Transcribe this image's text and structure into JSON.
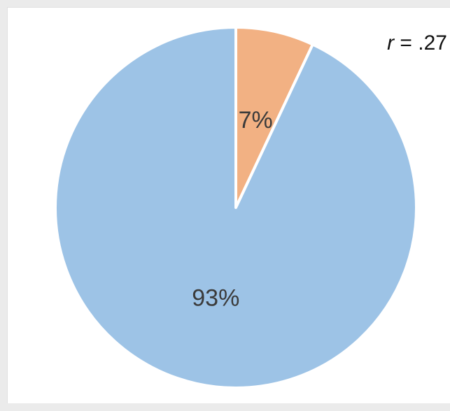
{
  "chart_data": {
    "type": "pie",
    "slices": [
      {
        "label": "7%",
        "value": 7,
        "color": "#f2b183"
      },
      {
        "label": "93%",
        "value": 93,
        "color": "#9dc3e6"
      }
    ],
    "annotation": {
      "symbol": "r",
      "text": " = .27"
    }
  },
  "colors": {
    "separator": "#ffffff",
    "background": "#ffffff"
  }
}
